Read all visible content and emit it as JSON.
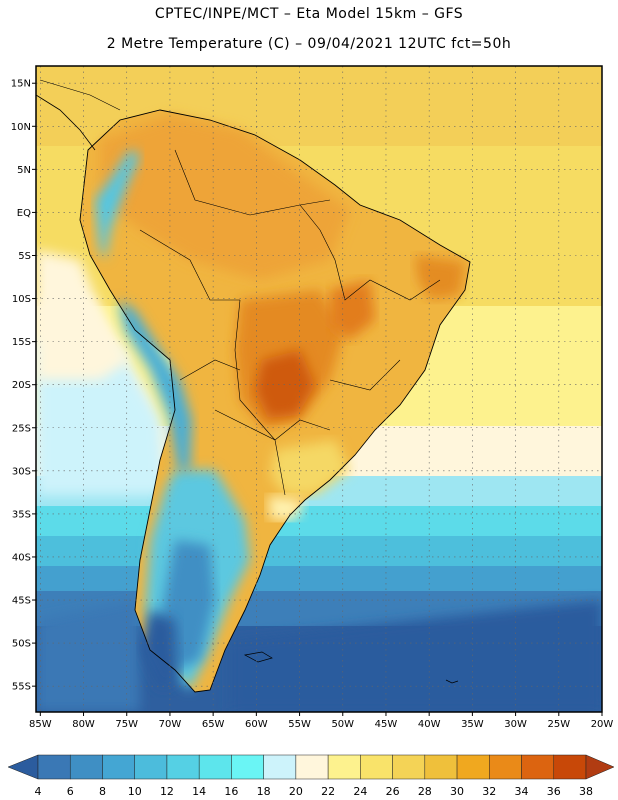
{
  "header": {
    "line1": "CPTEC/INPE/MCT –  Eta Model 15km – GFS",
    "line2": "2 Metre Temperature (C) – 09/04/2021 12UTC fct=50h"
  },
  "map": {
    "lat_labels": [
      "15N",
      "10N",
      "5N",
      "EQ",
      "5S",
      "10S",
      "15S",
      "20S",
      "25S",
      "30S",
      "35S",
      "40S",
      "45S",
      "50S",
      "55S"
    ],
    "lon_labels": [
      "85W",
      "80W",
      "75W",
      "70W",
      "65W",
      "60W",
      "55W",
      "50W",
      "45W",
      "40W",
      "35W",
      "30W",
      "25W",
      "20W"
    ],
    "lat_values": [
      15,
      10,
      5,
      0,
      -5,
      -10,
      -15,
      -20,
      -25,
      -30,
      -35,
      -40,
      -45,
      -50,
      -55
    ],
    "lon_values": [
      -85,
      -80,
      -75,
      -70,
      -65,
      -60,
      -55,
      -50,
      -45,
      -40,
      -35,
      -30,
      -25,
      -20
    ],
    "extent": {
      "lon_min": -85.5,
      "lon_max": -20,
      "lat_min": -58,
      "lat_max": 17
    }
  },
  "colorbar": {
    "labels": [
      "4",
      "6",
      "8",
      "10",
      "12",
      "14",
      "16",
      "18",
      "20",
      "22",
      "24",
      "26",
      "28",
      "30",
      "32",
      "34",
      "36",
      "38"
    ],
    "colors": [
      "#2b5c9e",
      "#3a78b5",
      "#3f8fc4",
      "#44a6d3",
      "#4cbcdc",
      "#55d0e4",
      "#5de5ec",
      "#6af5f5",
      "#cdf3fb",
      "#fff6dc",
      "#fdf28e",
      "#f9e36a",
      "#f4d356",
      "#efc03b",
      "#f0a81f",
      "#ea8a18",
      "#dc6410",
      "#c84808",
      "#b13c12"
    ]
  }
}
